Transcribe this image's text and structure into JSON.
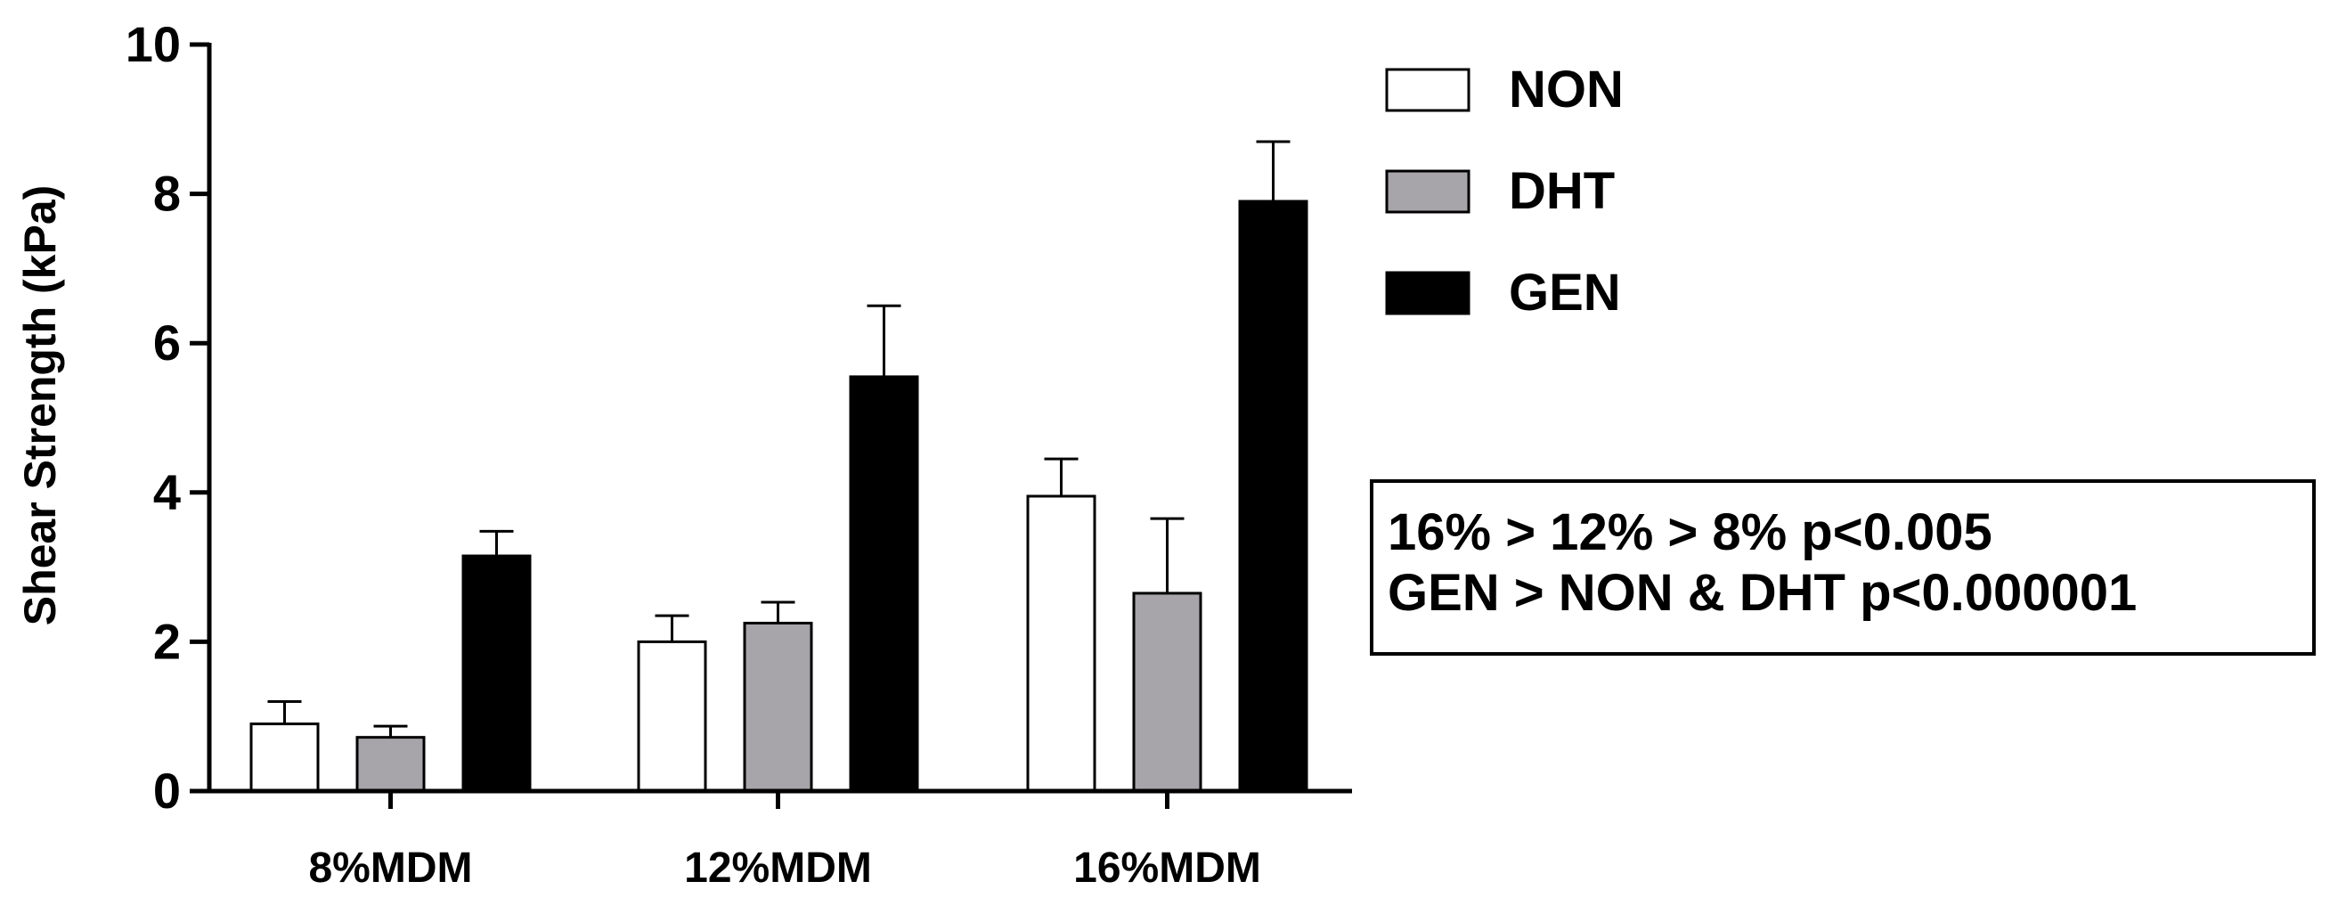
{
  "chart_data": {
    "type": "bar",
    "title": "",
    "xlabel": "",
    "ylabel": "Shear Strength (kPa)",
    "ylim": [
      0,
      10
    ],
    "yticks": [
      "0",
      "2",
      "4",
      "6",
      "8",
      "10"
    ],
    "categories": [
      "8%MDM",
      "12%MDM",
      "16%MDM"
    ],
    "series": [
      {
        "name": "NON",
        "color": "#ffffff",
        "values": [
          0.9,
          2.0,
          3.95
        ],
        "errors": [
          0.3,
          0.35,
          0.5
        ]
      },
      {
        "name": "DHT",
        "color": "#a7a5aa",
        "values": [
          0.72,
          2.25,
          2.65
        ],
        "errors": [
          0.15,
          0.28,
          1.0
        ]
      },
      {
        "name": "GEN",
        "color": "#000000",
        "values": [
          3.15,
          5.55,
          7.9
        ],
        "errors": [
          0.33,
          0.95,
          0.8
        ]
      }
    ],
    "legend_position": "top-right",
    "annotations": [
      "16% > 12% > 8% p<0.005",
      "GEN > NON & DHT p<0.000001"
    ]
  }
}
